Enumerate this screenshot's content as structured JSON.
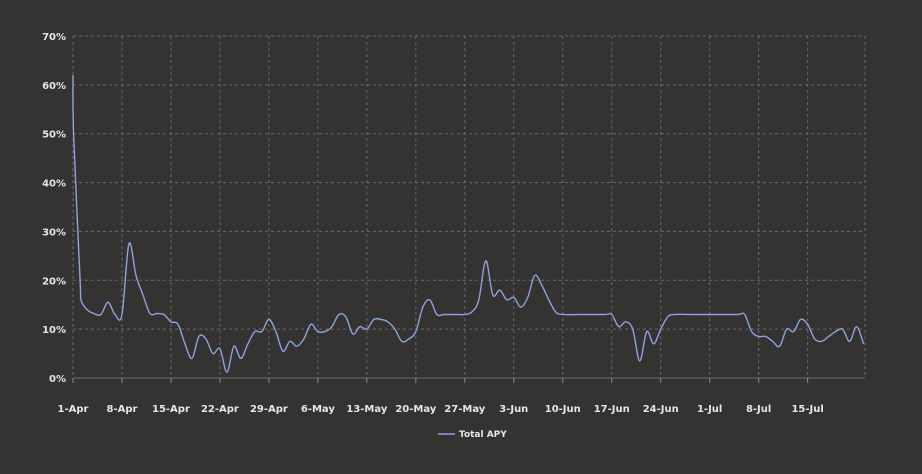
{
  "chart_data": {
    "type": "line",
    "title": "",
    "xlabel": "",
    "ylabel": "",
    "ylim": [
      0,
      70
    ],
    "y_ticks": [
      "0%",
      "10%",
      "20%",
      "30%",
      "40%",
      "50%",
      "60%",
      "70%"
    ],
    "x_ticks": [
      "1-Apr",
      "8-Apr",
      "15-Apr",
      "22-Apr",
      "29-Apr",
      "6-May",
      "13-May",
      "20-May",
      "27-May",
      "3-Jun",
      "10-Jun",
      "17-Jun",
      "24-Jun",
      "1-Jul",
      "8-Jul",
      "15-Jul"
    ],
    "grid": true,
    "legend": "bottom-center",
    "series_color": "#8ea2df",
    "series": [
      {
        "name": "Total APY",
        "points": [
          [
            "1-Apr",
            62
          ],
          [
            "1-Apr",
            50
          ],
          [
            "2-Apr",
            20
          ],
          [
            "2-Apr",
            16
          ],
          [
            "3-Apr",
            14
          ],
          [
            "4-Apr",
            13.2
          ],
          [
            "5-Apr",
            13
          ],
          [
            "6-Apr",
            15.5
          ],
          [
            "7-Apr",
            13
          ],
          [
            "8-Apr",
            13
          ],
          [
            "9-Apr",
            27.5
          ],
          [
            "10-Apr",
            21
          ],
          [
            "11-Apr",
            17
          ],
          [
            "12-Apr",
            13.2
          ],
          [
            "13-Apr",
            13.2
          ],
          [
            "14-Apr",
            13
          ],
          [
            "15-Apr",
            11.5
          ],
          [
            "16-Apr",
            11
          ],
          [
            "17-Apr",
            7
          ],
          [
            "18-Apr",
            4
          ],
          [
            "19-Apr",
            8.5
          ],
          [
            "20-Apr",
            8
          ],
          [
            "21-Apr",
            5
          ],
          [
            "22-Apr",
            6
          ],
          [
            "23-Apr",
            1.2
          ],
          [
            "24-Apr",
            6.5
          ],
          [
            "25-Apr",
            4
          ],
          [
            "26-Apr",
            7
          ],
          [
            "27-Apr",
            9.5
          ],
          [
            "28-Apr",
            9.5
          ],
          [
            "29-Apr",
            12
          ],
          [
            "30-Apr",
            9.5
          ],
          [
            "1-May",
            5.5
          ],
          [
            "2-May",
            7.5
          ],
          [
            "3-May",
            6.5
          ],
          [
            "4-May",
            8
          ],
          [
            "5-May",
            11
          ],
          [
            "6-May",
            9.5
          ],
          [
            "7-May",
            9.5
          ],
          [
            "8-May",
            10.5
          ],
          [
            "9-May",
            13
          ],
          [
            "10-May",
            12.5
          ],
          [
            "11-May",
            9
          ],
          [
            "12-May",
            10.5
          ],
          [
            "13-May",
            10
          ],
          [
            "14-May",
            12
          ],
          [
            "15-May",
            12
          ],
          [
            "16-May",
            11.5
          ],
          [
            "17-May",
            10
          ],
          [
            "18-May",
            7.5
          ],
          [
            "19-May",
            8
          ],
          [
            "20-May",
            9.5
          ],
          [
            "21-May",
            14.5
          ],
          [
            "22-May",
            16
          ],
          [
            "23-May",
            13
          ],
          [
            "24-May",
            13
          ],
          [
            "25-May",
            13
          ],
          [
            "26-May",
            13
          ],
          [
            "27-May",
            13
          ],
          [
            "28-May",
            13.5
          ],
          [
            "29-May",
            16
          ],
          [
            "30-May",
            24
          ],
          [
            "31-May",
            17
          ],
          [
            "1-Jun",
            18
          ],
          [
            "2-Jun",
            16
          ],
          [
            "3-Jun",
            16.5
          ],
          [
            "4-Jun",
            14.5
          ],
          [
            "5-Jun",
            16.5
          ],
          [
            "6-Jun",
            21
          ],
          [
            "7-Jun",
            19
          ],
          [
            "8-Jun",
            16
          ],
          [
            "9-Jun",
            13.5
          ],
          [
            "10-Jun",
            13
          ],
          [
            "13-Jun",
            13
          ],
          [
            "16-Jun",
            13
          ],
          [
            "17-Jun",
            13
          ],
          [
            "18-Jun",
            10.5
          ],
          [
            "19-Jun",
            11.5
          ],
          [
            "20-Jun",
            10
          ],
          [
            "21-Jun",
            3.5
          ],
          [
            "22-Jun",
            9.5
          ],
          [
            "23-Jun",
            7
          ],
          [
            "24-Jun",
            10
          ],
          [
            "25-Jun",
            12.5
          ],
          [
            "26-Jun",
            13
          ],
          [
            "29-Jun",
            13
          ],
          [
            "2-Jul",
            13
          ],
          [
            "5-Jul",
            13
          ],
          [
            "6-Jul",
            13
          ],
          [
            "7-Jul",
            9.5
          ],
          [
            "8-Jul",
            8.5
          ],
          [
            "9-Jul",
            8.5
          ],
          [
            "10-Jul",
            7.5
          ],
          [
            "11-Jul",
            6.5
          ],
          [
            "12-Jul",
            10
          ],
          [
            "13-Jul",
            9.5
          ],
          [
            "14-Jul",
            12
          ],
          [
            "15-Jul",
            11
          ],
          [
            "16-Jul",
            8
          ],
          [
            "17-Jul",
            7.5
          ],
          [
            "18-Jul",
            8.5
          ],
          [
            "19-Jul",
            9.5
          ],
          [
            "20-Jul",
            10
          ],
          [
            "21-Jul",
            7.5
          ],
          [
            "22-Jul",
            10.5
          ],
          [
            "23-Jul",
            7
          ]
        ]
      }
    ]
  }
}
